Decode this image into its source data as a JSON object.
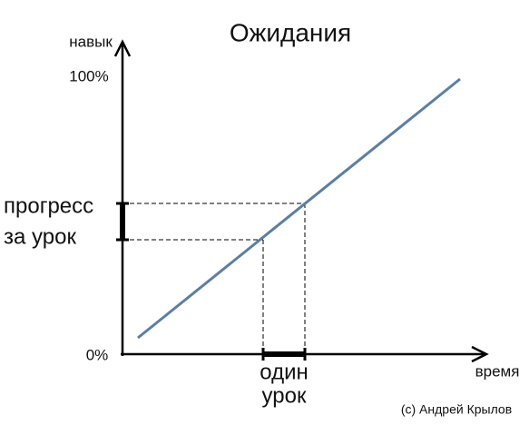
{
  "title": "Ожидания",
  "y_axis": {
    "label": "навык",
    "top_tick": "100%",
    "bottom_tick": "0%"
  },
  "x_axis": {
    "label": "время"
  },
  "annotations": {
    "progress": [
      "прогресс",
      "за урок"
    ],
    "lesson": [
      "один",
      "урок"
    ]
  },
  "credit": "(c) Андрей Крылов"
}
